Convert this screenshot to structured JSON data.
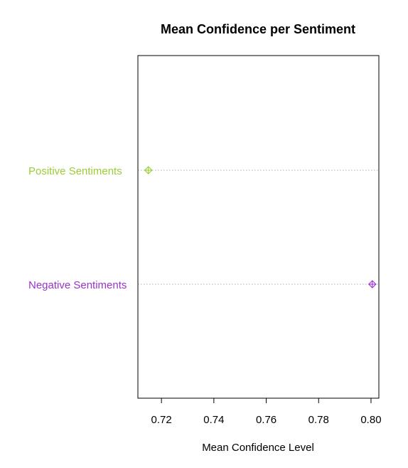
{
  "chart_data": {
    "type": "scatter",
    "title": "Mean Confidence per Sentiment",
    "xlabel": "Mean Confidence Level",
    "ylabel": "",
    "xlim": [
      0.711,
      0.803
    ],
    "x_ticks": [
      0.72,
      0.74,
      0.76,
      0.78,
      0.8
    ],
    "x_tick_labels": [
      "0.72",
      "0.74",
      "0.76",
      "0.78",
      "0.80"
    ],
    "categories": [
      "Positive Sentiments",
      "Negative Sentiments"
    ],
    "values": [
      0.715,
      0.8005
    ],
    "colors": [
      "#9acd32",
      "#9932cc"
    ],
    "marker": "diamond-plus",
    "gridlines": "dotted",
    "legend": "none"
  }
}
